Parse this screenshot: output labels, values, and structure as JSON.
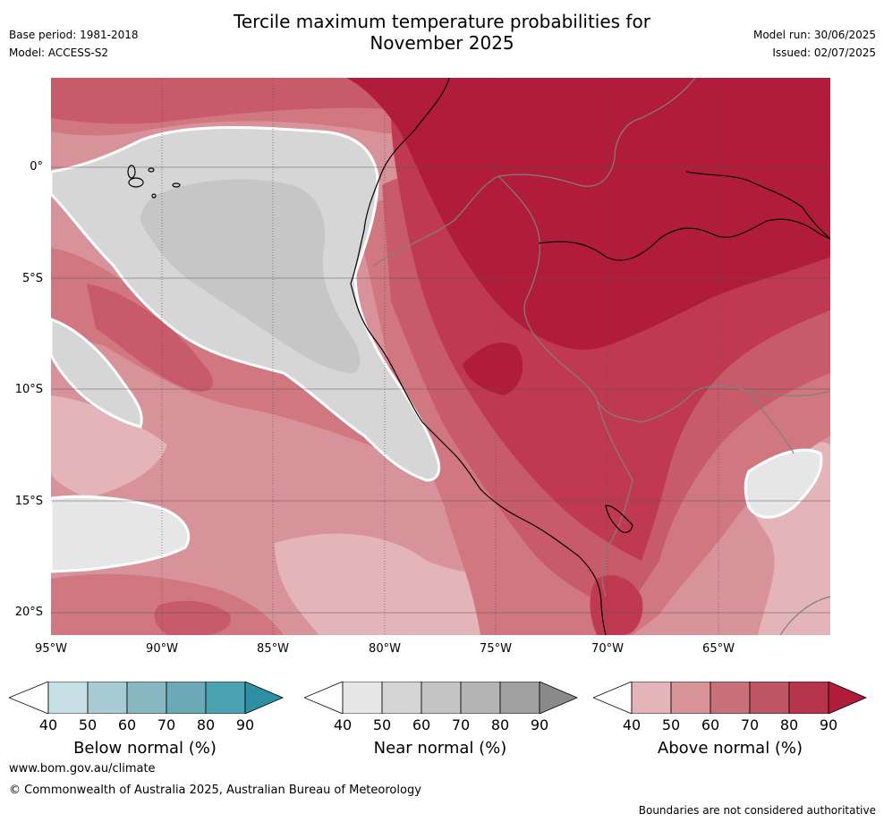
{
  "header": {
    "title_line1": "Tercile maximum temperature probabilities for",
    "title_line2": "November 2025",
    "base_period": "Base period: 1981-2018",
    "model": "Model: ACCESS-S2",
    "model_run": "Model run: 30/06/2025",
    "issued": "Issued: 02/07/2025"
  },
  "map": {
    "lat_labels": [
      "0°",
      "5°S",
      "10°S",
      "15°S",
      "20°S"
    ],
    "lon_labels": [
      "95°W",
      "90°W",
      "85°W",
      "80°W",
      "75°W",
      "70°W",
      "65°W"
    ],
    "colors": {
      "above_90": "#b01c3a",
      "above_80": "#bf3a50",
      "above_70": "#c85b69",
      "above_60": "#d0777f",
      "above_50": "#d8939a",
      "above_40": "#e3b5b9",
      "near_60": "#c6c6c6",
      "near_50": "#d6d6d6",
      "near_40": "#e6e6e6",
      "coast": "#000000",
      "border": "#808080",
      "grid": "#555555"
    }
  },
  "colorbars": [
    {
      "title": "Below normal (%)",
      "ticks": [
        "40",
        "50",
        "60",
        "70",
        "80",
        "90"
      ],
      "colors": [
        "#ffffff",
        "#c7e1e6",
        "#a7cbd2",
        "#88b9c3",
        "#6aa9b5",
        "#4aa3b1",
        "#2e8fa3"
      ]
    },
    {
      "title": "Near normal (%)",
      "ticks": [
        "40",
        "50",
        "60",
        "70",
        "80",
        "90"
      ],
      "colors": [
        "#ffffff",
        "#e6e6e6",
        "#d4d4d4",
        "#c4c4c4",
        "#b4b4b4",
        "#a0a0a0",
        "#8a8a8a"
      ]
    },
    {
      "title": "Above normal (%)",
      "ticks": [
        "40",
        "50",
        "60",
        "70",
        "80",
        "90"
      ],
      "colors": [
        "#ffffff",
        "#e3b5b9",
        "#d8939a",
        "#c9717b",
        "#bf5663",
        "#b7354b",
        "#b01c3a"
      ]
    }
  ],
  "footer": {
    "url": "www.bom.gov.au/climate",
    "copyright": "© Commonwealth of Australia 2025, Australian Bureau of Meteorology",
    "disclaimer": "Boundaries are not considered authoritative"
  }
}
